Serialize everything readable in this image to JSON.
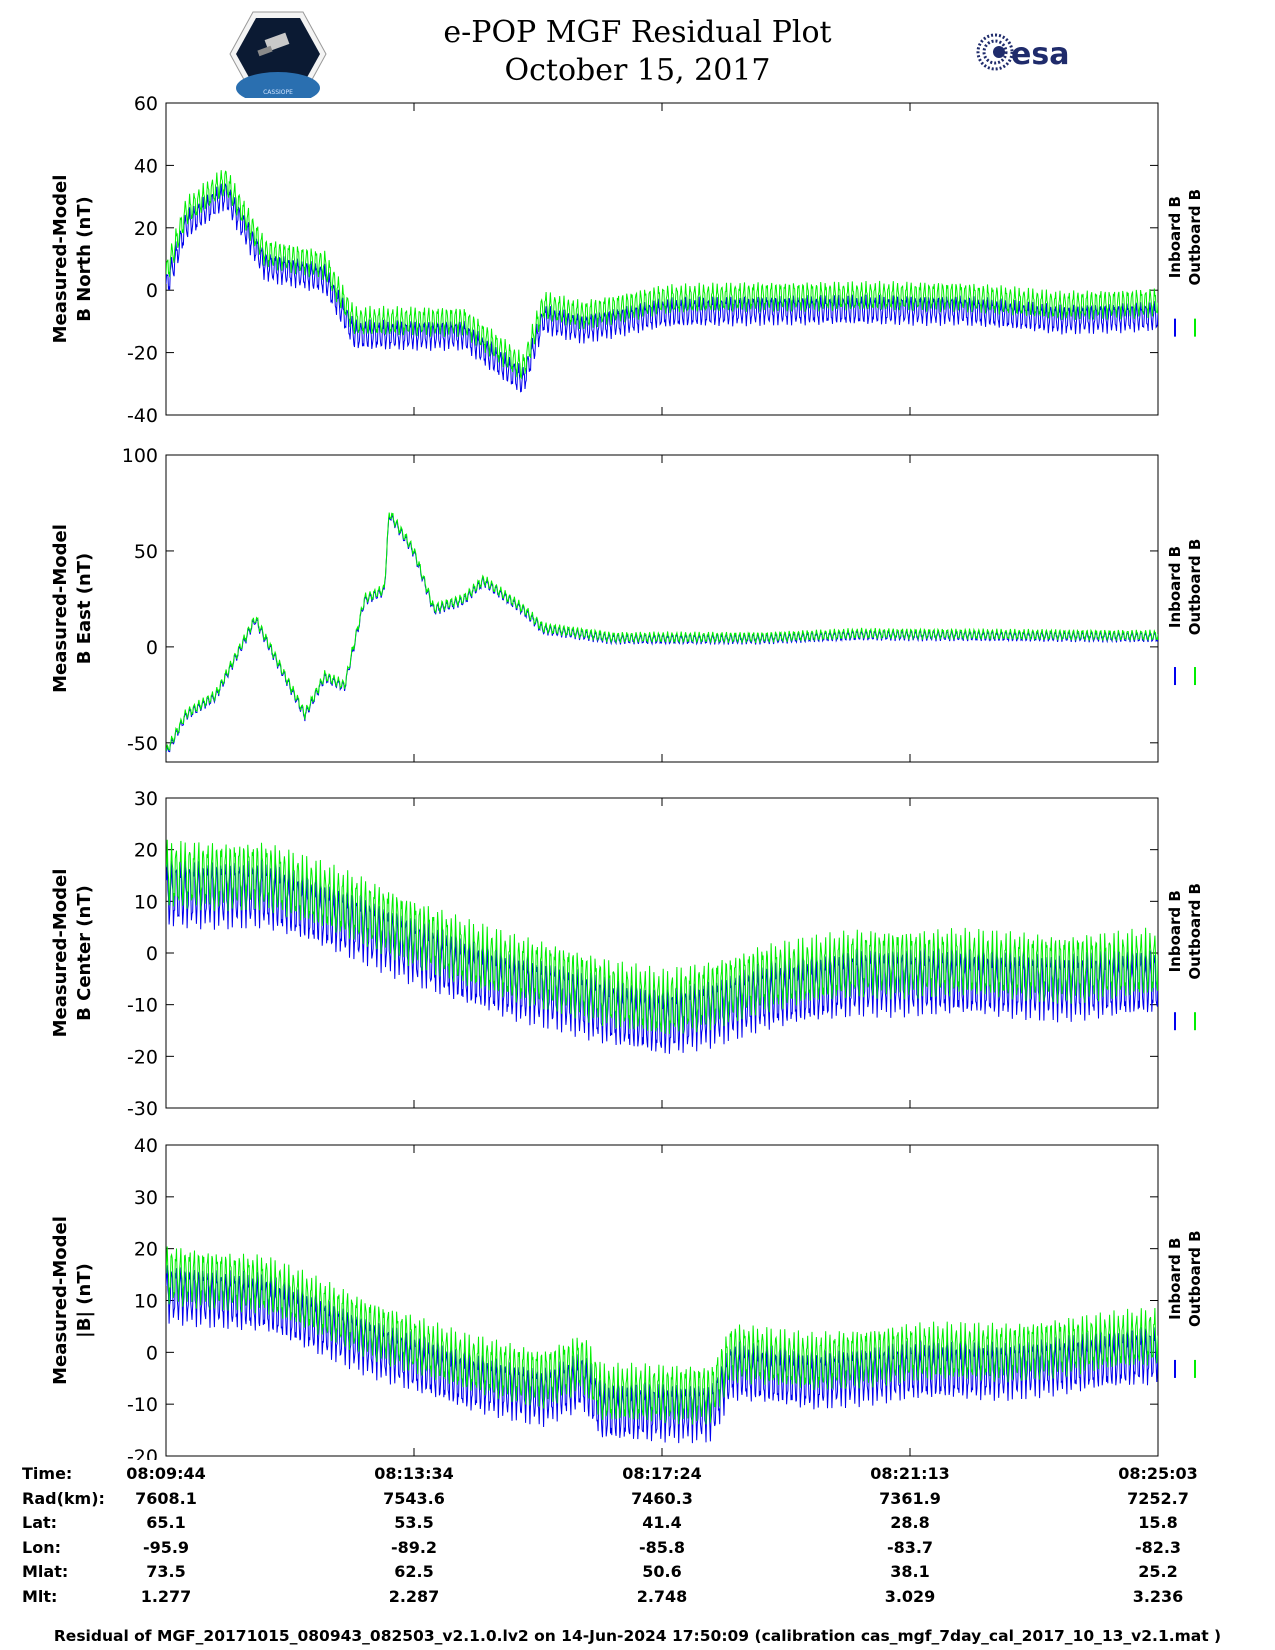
{
  "header": {
    "title_line1": "e-POP MGF Residual Plot",
    "title_line2": "October 15, 2017",
    "logo_left_text": "CASSIOPE",
    "logo_right_text": "esa"
  },
  "colors": {
    "inboard": "#0000ee",
    "outboard": "#00ee00",
    "axis": "#000000"
  },
  "chart_data": [
    {
      "type": "line",
      "title": "",
      "ylabel": [
        "Measured-Model",
        "B North (nT)"
      ],
      "ylim": [
        -40,
        60
      ],
      "yticks": [
        -40,
        -20,
        0,
        20,
        40,
        60
      ],
      "xtick_labels": [
        "08:09:44",
        "08:13:34",
        "08:17:24",
        "08:21:13",
        "08:25:03"
      ],
      "legend": [
        "Inboard B",
        "Outboard B"
      ],
      "legend_position": "right",
      "trend": [
        [
          0,
          5
        ],
        [
          0.02,
          25
        ],
        [
          0.06,
          35
        ],
        [
          0.1,
          12
        ],
        [
          0.16,
          8
        ],
        [
          0.19,
          -10
        ],
        [
          0.3,
          -10
        ],
        [
          0.36,
          -25
        ],
        [
          0.38,
          -5
        ],
        [
          0.42,
          -8
        ],
        [
          0.5,
          -3
        ],
        [
          0.6,
          -2
        ],
        [
          0.7,
          -2
        ],
        [
          0.8,
          -2
        ],
        [
          0.9,
          -5
        ],
        [
          1.0,
          -4
        ]
      ],
      "osc_amp": 5,
      "osc_cycles": 220,
      "inboard_offset": -5,
      "outboard_offset": 0
    },
    {
      "type": "line",
      "title": "",
      "ylabel": [
        "Measured-Model",
        "B East (nT)"
      ],
      "ylim": [
        -60,
        100
      ],
      "yticks": [
        -50,
        0,
        50,
        100
      ],
      "xtick_labels": [
        "08:09:44",
        "08:13:34",
        "08:17:24",
        "08:21:13",
        "08:25:03"
      ],
      "legend": [
        "Inboard B",
        "Outboard B"
      ],
      "legend_position": "right",
      "trend": [
        [
          0,
          -55
        ],
        [
          0.02,
          -35
        ],
        [
          0.05,
          -25
        ],
        [
          0.09,
          15
        ],
        [
          0.12,
          -15
        ],
        [
          0.14,
          -35
        ],
        [
          0.16,
          -15
        ],
        [
          0.18,
          -20
        ],
        [
          0.2,
          25
        ],
        [
          0.22,
          30
        ],
        [
          0.225,
          70
        ],
        [
          0.25,
          50
        ],
        [
          0.27,
          20
        ],
        [
          0.3,
          25
        ],
        [
          0.32,
          35
        ],
        [
          0.36,
          20
        ],
        [
          0.38,
          10
        ],
        [
          0.45,
          5
        ],
        [
          0.6,
          5
        ],
        [
          0.7,
          7
        ],
        [
          1.0,
          6
        ]
      ],
      "osc_amp": 3,
      "osc_cycles": 220,
      "inboard_offset": -1,
      "outboard_offset": 0
    },
    {
      "type": "line",
      "title": "",
      "ylabel": [
        "Measured-Model",
        "B Center (nT)"
      ],
      "ylim": [
        -30,
        30
      ],
      "yticks": [
        -30,
        -20,
        -10,
        0,
        10,
        20,
        30
      ],
      "xtick_labels": [
        "08:09:44",
        "08:13:34",
        "08:17:24",
        "08:21:13",
        "08:25:03"
      ],
      "legend": [
        "Inboard B",
        "Outboard B"
      ],
      "legend_position": "right",
      "trend": [
        [
          0,
          15
        ],
        [
          0.1,
          15
        ],
        [
          0.2,
          8
        ],
        [
          0.3,
          0
        ],
        [
          0.35,
          -3
        ],
        [
          0.4,
          -5
        ],
        [
          0.45,
          -8
        ],
        [
          0.5,
          -10
        ],
        [
          0.55,
          -8
        ],
        [
          0.6,
          -5
        ],
        [
          0.7,
          -2
        ],
        [
          0.8,
          -2
        ],
        [
          0.9,
          -3
        ],
        [
          1.0,
          -2
        ]
      ],
      "osc_amp": 7,
      "osc_cycles": 220,
      "inboard_offset": -4,
      "outboard_offset": 0
    },
    {
      "type": "line",
      "title": "",
      "ylabel": [
        "Measured-Model",
        "|B| (nT)"
      ],
      "ylim": [
        -20,
        40
      ],
      "yticks": [
        -20,
        -10,
        0,
        10,
        20,
        30,
        40
      ],
      "xtick_labels": [
        "08:09:44",
        "08:13:34",
        "08:17:24",
        "08:21:13",
        "08:25:03"
      ],
      "legend": [
        "Inboard B",
        "Outboard B"
      ],
      "legend_position": "right",
      "trend": [
        [
          0,
          15
        ],
        [
          0.1,
          13
        ],
        [
          0.2,
          5
        ],
        [
          0.3,
          -2
        ],
        [
          0.38,
          -5
        ],
        [
          0.42,
          -2
        ],
        [
          0.44,
          -8
        ],
        [
          0.5,
          -8
        ],
        [
          0.55,
          -8
        ],
        [
          0.57,
          0
        ],
        [
          0.65,
          -2
        ],
        [
          0.75,
          0
        ],
        [
          0.85,
          0
        ],
        [
          1.0,
          3
        ]
      ],
      "osc_amp": 6,
      "osc_cycles": 220,
      "inboard_offset": -4,
      "outboard_offset": 0
    }
  ],
  "info_table": {
    "labels": [
      "Time:",
      "Rad(km):",
      "Lat:",
      "Lon:",
      "Mlat:",
      "Mlt:"
    ],
    "columns": [
      [
        "08:09:44",
        "7608.1",
        "65.1",
        "-95.9",
        "73.5",
        "1.277"
      ],
      [
        "08:13:34",
        "7543.6",
        "53.5",
        "-89.2",
        "62.5",
        "2.287"
      ],
      [
        "08:17:24",
        "7460.3",
        "41.4",
        "-85.8",
        "50.6",
        "2.748"
      ],
      [
        "08:21:13",
        "7361.9",
        "28.8",
        "-83.7",
        "38.1",
        "3.029"
      ],
      [
        "08:25:03",
        "7252.7",
        "15.8",
        "-82.3",
        "25.2",
        "3.236"
      ]
    ]
  },
  "footer": "Residual of MGF_20171015_080943_082503_v2.1.0.lv2 on 14-Jun-2024 17:50:09 (calibration cas_mgf_7day_cal_2017_10_13_v2.1.mat )"
}
